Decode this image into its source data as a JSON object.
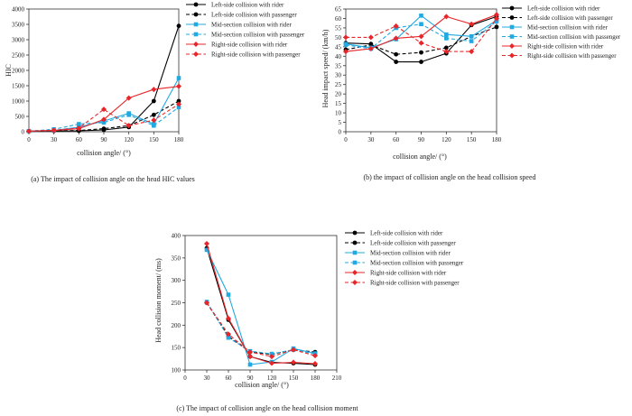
{
  "legend_labels": [
    "Left-side collision with rider",
    "Left-side collision with passenger",
    "Mid-section collision with rider",
    "Mid-section collision with passenger",
    "Right-side collision with rider",
    "Right-side collision with passenger"
  ],
  "series_styles": [
    {
      "color": "#000000",
      "dashed": false,
      "marker": "circle"
    },
    {
      "color": "#000000",
      "dashed": true,
      "marker": "circle"
    },
    {
      "color": "#21a9e1",
      "dashed": false,
      "marker": "square"
    },
    {
      "color": "#21a9e1",
      "dashed": true,
      "marker": "square"
    },
    {
      "color": "#e8262a",
      "dashed": false,
      "marker": "diamond"
    },
    {
      "color": "#e8262a",
      "dashed": true,
      "marker": "diamond"
    }
  ],
  "chart_data": [
    {
      "id": "a",
      "type": "line",
      "ylabel": "HIC",
      "xlabel": "collision angle/ (°)",
      "caption": "(a) The impact of collision angle on the head HIC values",
      "x": [
        0,
        30,
        60,
        90,
        120,
        150,
        180
      ],
      "xticks": [
        "0",
        "30",
        "60",
        "90",
        "120",
        "150",
        "180"
      ],
      "ylim": [
        0,
        4000
      ],
      "yticks": [
        "0",
        "500",
        "1000",
        "1500",
        "2000",
        "2500",
        "3000",
        "3500",
        "4000"
      ],
      "series": [
        {
          "name": "Left-side collision with rider",
          "values": [
            20,
            25,
            30,
            60,
            150,
            1000,
            3450
          ]
        },
        {
          "name": "Left-side collision with passenger",
          "values": [
            20,
            30,
            40,
            100,
            200,
            550,
            1000
          ]
        },
        {
          "name": "Mid-section collision with rider",
          "values": [
            20,
            40,
            150,
            350,
            600,
            250,
            1750
          ]
        },
        {
          "name": "Mid-section collision with passenger",
          "values": [
            20,
            80,
            250,
            300,
            550,
            200,
            800
          ]
        },
        {
          "name": "Right-side collision with rider",
          "values": [
            20,
            40,
            100,
            400,
            1100,
            1380,
            1480
          ]
        },
        {
          "name": "Right-side collision with passenger",
          "values": [
            20,
            50,
            120,
            730,
            200,
            380,
            900
          ]
        }
      ]
    },
    {
      "id": "b",
      "type": "line",
      "ylabel": "Head impact speed/ (km/h)",
      "xlabel": "collision angle/ (°)",
      "caption": "(b) the impact of collision angle on the head collision speed",
      "x": [
        0,
        30,
        60,
        90,
        120,
        150,
        180
      ],
      "xticks": [
        "0",
        "30",
        "60",
        "90",
        "120",
        "150",
        "180"
      ],
      "ylim": [
        0,
        65
      ],
      "yticks": [
        "0",
        "5",
        "10",
        "15",
        "20",
        "25",
        "30",
        "35",
        "40",
        "45",
        "50",
        "55",
        "60",
        "65"
      ],
      "series": [
        {
          "name": "Left-side collision with rider",
          "values": [
            47,
            46.5,
            37,
            37,
            41.5,
            56.5,
            61
          ]
        },
        {
          "name": "Left-side collision with passenger",
          "values": [
            43.5,
            46,
            41,
            42,
            44.5,
            50.5,
            55.5
          ]
        },
        {
          "name": "Mid-section collision with rider",
          "values": [
            46.5,
            44.5,
            49,
            61.5,
            51.5,
            50.5,
            59
          ]
        },
        {
          "name": "Mid-section collision with passenger",
          "values": [
            46,
            44,
            55,
            57,
            49.5,
            48,
            58.5
          ]
        },
        {
          "name": "Right-side collision with rider",
          "values": [
            42.5,
            44,
            49.5,
            50.5,
            61,
            57,
            62
          ]
        },
        {
          "name": "Right-side collision with passenger",
          "values": [
            50,
            50,
            56,
            47,
            42.5,
            42.5,
            60
          ]
        }
      ]
    },
    {
      "id": "c",
      "type": "line",
      "ylabel": "Head collision moment/ (ms)",
      "xlabel": "collision angle/ (°)",
      "caption": "(c) The impact of collision angle on the head collision moment",
      "x": [
        30,
        60,
        90,
        120,
        150,
        180
      ],
      "xrange": [
        0,
        210
      ],
      "xticks_values": [
        0,
        30,
        60,
        90,
        120,
        150,
        180,
        210
      ],
      "xticks": [
        "0",
        "30",
        "60",
        "90",
        "120",
        "150",
        "180",
        "210"
      ],
      "ylim": [
        100,
        400
      ],
      "yticks": [
        "100",
        "150",
        "200",
        "250",
        "300",
        "350",
        "400"
      ],
      "series": [
        {
          "name": "Left-side collision with rider",
          "values": [
            372,
            212,
            130,
            117,
            115,
            112
          ]
        },
        {
          "name": "Left-side collision with passenger",
          "values": [
            250,
            175,
            140,
            135,
            145,
            140
          ]
        },
        {
          "name": "Mid-section collision with rider",
          "values": [
            368,
            268,
            112,
            118,
            148,
            137
          ]
        },
        {
          "name": "Mid-section collision with passenger",
          "values": [
            252,
            172,
            142,
            136,
            145,
            136
          ]
        },
        {
          "name": "Right-side collision with rider",
          "values": [
            382,
            215,
            130,
            115,
            117,
            114
          ]
        },
        {
          "name": "Right-side collision with passenger",
          "values": [
            250,
            180,
            140,
            130,
            145,
            132
          ]
        }
      ]
    }
  ]
}
